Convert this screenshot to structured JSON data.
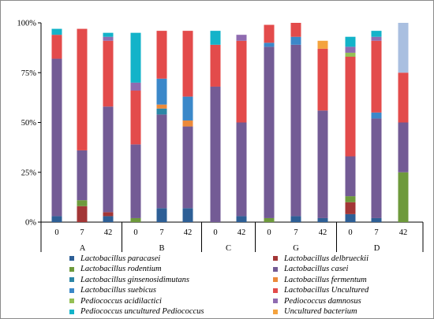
{
  "chart_data": {
    "type": "bar",
    "stacked": true,
    "ylim": [
      0,
      100
    ],
    "yticks": [
      "0%",
      "25%",
      "50%",
      "75%",
      "100%"
    ],
    "groups": [
      {
        "name": "A",
        "categories": [
          "0",
          "7",
          "42"
        ]
      },
      {
        "name": "B",
        "categories": [
          "0",
          "7",
          "42"
        ]
      },
      {
        "name": "C",
        "categories": [
          "0",
          "42"
        ]
      },
      {
        "name": "G",
        "categories": [
          "0",
          "7",
          "42"
        ]
      },
      {
        "name": "D",
        "categories": [
          "0",
          "7",
          "42"
        ]
      }
    ],
    "categories": [
      "A-0",
      "A-7",
      "A-42",
      "B-0",
      "B-7",
      "B-42",
      "C-0",
      "C-42",
      "G-0",
      "G-7",
      "G-42",
      "D-0",
      "D-7",
      "D-42"
    ],
    "series": [
      {
        "name": "Lactobacillus paracasei",
        "color": "#2e5f96",
        "values": [
          3,
          0,
          3,
          0,
          7,
          7,
          0,
          3,
          0,
          3,
          2,
          4,
          2,
          0
        ]
      },
      {
        "name": "Lactobacillus delbrueckii",
        "color": "#a33636",
        "values": [
          0,
          8,
          2,
          0,
          0,
          0,
          0,
          0,
          0,
          0,
          0,
          6,
          0,
          0
        ]
      },
      {
        "name": "Lactobacillus rodentium",
        "color": "#6e9a3c",
        "values": [
          0,
          3,
          0,
          2,
          0,
          0,
          0,
          0,
          2,
          0,
          0,
          3,
          0,
          25
        ]
      },
      {
        "name": "Lactobacillus casei",
        "color": "#735b95",
        "values": [
          79,
          25,
          53,
          37,
          47,
          41,
          68,
          47,
          86,
          86,
          54,
          20,
          50,
          25
        ]
      },
      {
        "name": "Lactobacillus ginsenosidimutans",
        "color": "#2c86a6",
        "values": [
          0,
          0,
          0,
          0,
          3,
          0,
          0,
          0,
          0,
          0,
          0,
          0,
          0,
          0
        ]
      },
      {
        "name": "Lactobacillus fermentum",
        "color": "#ec8a3a",
        "values": [
          0,
          0,
          0,
          0,
          2,
          3,
          0,
          0,
          0,
          0,
          0,
          0,
          0,
          0
        ]
      },
      {
        "name": "Lactobacillus suebicus",
        "color": "#3b88c9",
        "values": [
          0,
          0,
          0,
          0,
          13,
          12,
          0,
          0,
          2,
          4,
          0,
          0,
          3,
          0
        ]
      },
      {
        "name": "Lactobacillus Uncultured",
        "color": "#e34b4b",
        "values": [
          12,
          61,
          33,
          27,
          24,
          33,
          21,
          41,
          9,
          7,
          31,
          50,
          36,
          25
        ]
      },
      {
        "name": "Pediococcus acidilactici",
        "color": "#95c055",
        "values": [
          0,
          0,
          0,
          0,
          0,
          0,
          0,
          0,
          0,
          0,
          0,
          2,
          0,
          0
        ]
      },
      {
        "name": "Pediococcus damnosus",
        "color": "#8f6bb0",
        "values": [
          0,
          0,
          2,
          4,
          0,
          0,
          0,
          3,
          0,
          0,
          0,
          3,
          2,
          0
        ]
      },
      {
        "name": "Pediococcus uncultured Pediococcus",
        "color": "#13b3c9",
        "values": [
          3,
          0,
          2,
          25,
          0,
          0,
          7,
          0,
          0,
          0,
          0,
          5,
          3,
          0
        ]
      },
      {
        "name": "Uncultured bacterium",
        "color": "#f4a33e",
        "values": [
          0,
          0,
          0,
          0,
          0,
          0,
          0,
          0,
          0,
          0,
          4,
          0,
          0,
          0
        ]
      },
      {
        "name": "",
        "color": "#a9bfe0",
        "values": [
          0,
          0,
          0,
          0,
          0,
          0,
          0,
          0,
          0,
          0,
          0,
          0,
          0,
          25
        ]
      }
    ],
    "legend": {
      "placement": "bottom",
      "left_column": [
        "Lactobacillus paracasei",
        "Lactobacillus rodentium",
        "Lactobacillus ginsenosidimutans",
        "Lactobacillus suebicus",
        "Pediococcus acidilactici",
        "Pediococcus uncultured Pediococcus"
      ],
      "right_column": [
        "Lactobacillus delbrueckii",
        "Lactobacillus casei",
        "Lactobacillus fermentum",
        "Lactobacillus Uncultured",
        "Pediococcus damnosus",
        "Uncultured bacterium"
      ]
    },
    "grid": false
  }
}
